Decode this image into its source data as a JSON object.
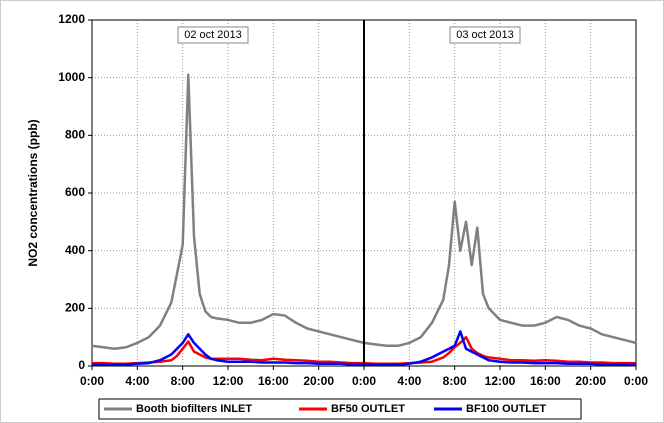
{
  "chart_data": {
    "type": "line",
    "y_label": "NO2 concentrations (ppb)",
    "annotations": [
      "02 oct 2013",
      "03 oct 2013"
    ],
    "divider_x": 24,
    "x": [
      0,
      1,
      2,
      3,
      4,
      5,
      6,
      7,
      7.5,
      8,
      8.5,
      9,
      9.5,
      10,
      10.5,
      11,
      12,
      13,
      14,
      15,
      16,
      17,
      18,
      19,
      20,
      21,
      22,
      23,
      24,
      25,
      26,
      27,
      28,
      29,
      30,
      31,
      31.5,
      32,
      32.5,
      33,
      33.5,
      34,
      34.5,
      35,
      36,
      37,
      38,
      39,
      40,
      41,
      42,
      43,
      44,
      45,
      46,
      47,
      48
    ],
    "series": [
      {
        "name": "Booth biofilters INLET",
        "color": "#808080",
        "values": [
          70,
          65,
          60,
          65,
          80,
          100,
          140,
          220,
          320,
          420,
          1010,
          450,
          250,
          190,
          170,
          165,
          160,
          150,
          150,
          160,
          180,
          175,
          150,
          130,
          120,
          110,
          100,
          90,
          80,
          75,
          70,
          70,
          80,
          100,
          150,
          230,
          350,
          570,
          400,
          500,
          350,
          480,
          250,
          200,
          160,
          150,
          140,
          140,
          150,
          170,
          160,
          140,
          130,
          110,
          100,
          90,
          80
        ]
      },
      {
        "name": "BF50 OUTLET",
        "color": "#ff0000",
        "values": [
          10,
          10,
          8,
          8,
          10,
          12,
          15,
          20,
          35,
          60,
          85,
          50,
          40,
          30,
          25,
          25,
          25,
          25,
          22,
          20,
          25,
          22,
          20,
          18,
          15,
          15,
          12,
          10,
          10,
          8,
          8,
          8,
          10,
          12,
          15,
          30,
          45,
          65,
          80,
          100,
          60,
          45,
          35,
          30,
          25,
          20,
          20,
          18,
          20,
          18,
          15,
          15,
          12,
          12,
          10,
          10,
          10
        ]
      },
      {
        "name": "BF100 OUTLET",
        "color": "#0000ff",
        "values": [
          5,
          5,
          5,
          5,
          8,
          10,
          20,
          40,
          60,
          80,
          110,
          80,
          60,
          40,
          25,
          20,
          15,
          15,
          15,
          12,
          12,
          12,
          10,
          10,
          8,
          8,
          8,
          5,
          5,
          5,
          5,
          5,
          8,
          15,
          30,
          50,
          60,
          70,
          120,
          60,
          50,
          40,
          30,
          20,
          15,
          12,
          12,
          10,
          10,
          10,
          8,
          8,
          8,
          5,
          5,
          5,
          5
        ]
      }
    ],
    "xlim": [
      0,
      48
    ],
    "xticks": [
      {
        "value": 0,
        "label": "0:00"
      },
      {
        "value": 4,
        "label": "4:00"
      },
      {
        "value": 8,
        "label": "8:00"
      },
      {
        "value": 12,
        "label": "12:00"
      },
      {
        "value": 16,
        "label": "16:00"
      },
      {
        "value": 20,
        "label": "20:00"
      },
      {
        "value": 24,
        "label": "0:00"
      },
      {
        "value": 28,
        "label": "4:00"
      },
      {
        "value": 32,
        "label": "8:00"
      },
      {
        "value": 36,
        "label": "12:00"
      },
      {
        "value": 40,
        "label": "16:00"
      },
      {
        "value": 44,
        "label": "20:00"
      },
      {
        "value": 48,
        "label": "0:00"
      }
    ],
    "ylim": [
      0,
      1200
    ],
    "yticks": [
      0,
      200,
      400,
      600,
      800,
      1000,
      1200
    ],
    "grid": true,
    "legend": "bottom"
  }
}
